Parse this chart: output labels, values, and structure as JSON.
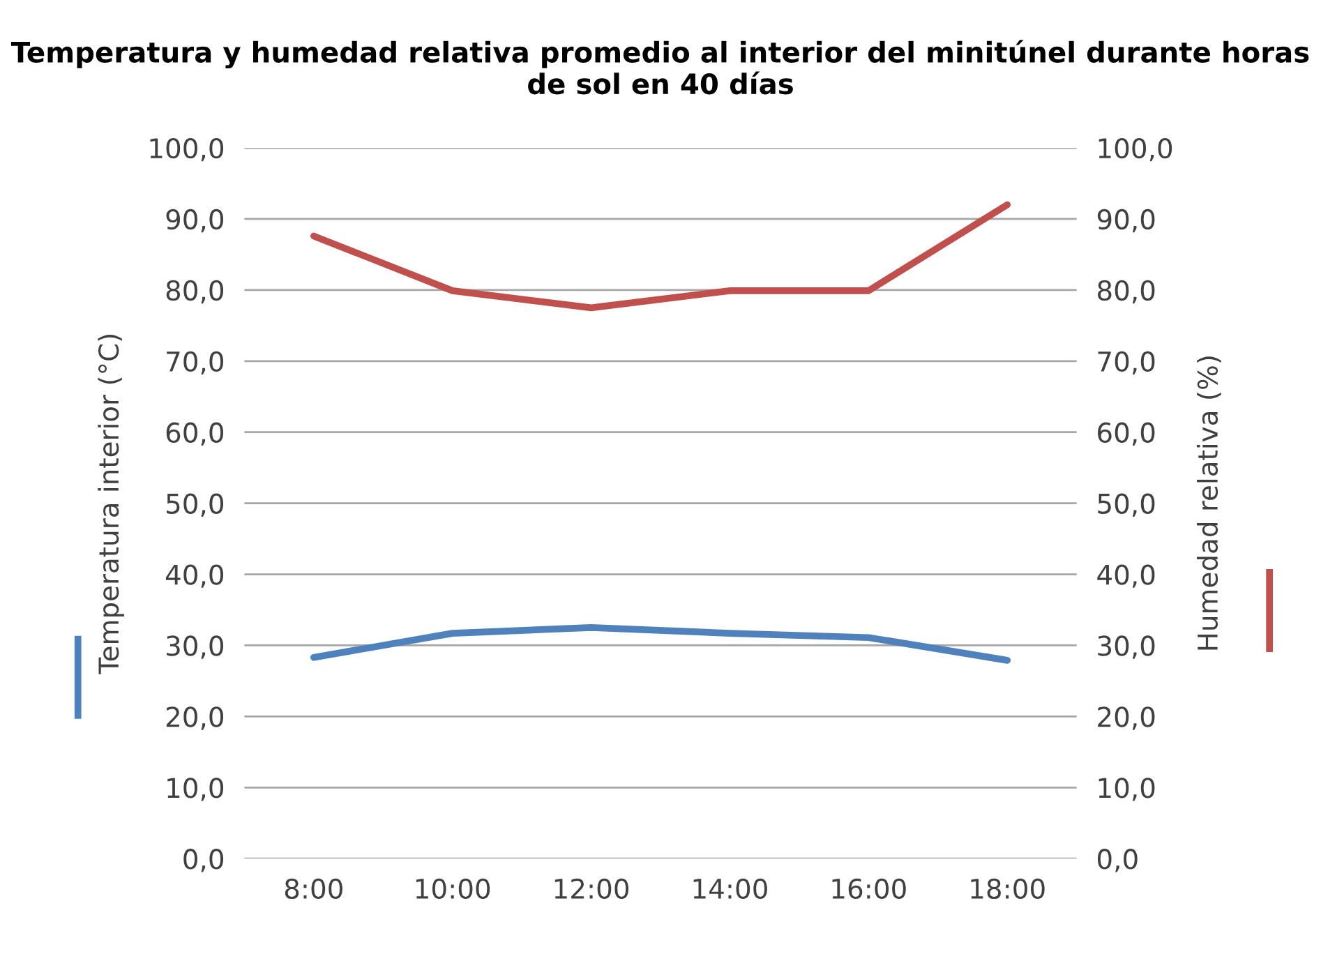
{
  "chart_data": {
    "type": "line",
    "title": "Temperatura y humedad relativa promedio al interior del minitúnel durante horas de sol en 40 días",
    "ylabel": "Temperatura interior (°C)",
    "y2label": "Humedad relativa (%)",
    "categories": [
      "8:00",
      "10:00",
      "12:00",
      "14:00",
      "16:00",
      "18:00"
    ],
    "series": [
      {
        "color": "#4f81bd",
        "values": [
          28.3,
          31.7,
          32.5,
          31.7,
          31.1,
          27.9
        ]
      },
      {
        "color": "#c0504d",
        "axis": "y2",
        "values": [
          87.6,
          79.9,
          77.5,
          79.9,
          79.9,
          92.0
        ]
      }
    ],
    "ylim": [
      0,
      100
    ],
    "yticks": [
      {
        "value": 0,
        "label": "0,0"
      },
      {
        "value": 10,
        "label": "10,0"
      },
      {
        "value": 20,
        "label": "20,0"
      },
      {
        "value": 30,
        "label": "30,0"
      },
      {
        "value": 40,
        "label": "40,0"
      },
      {
        "value": 50,
        "label": "50,0"
      },
      {
        "value": 60,
        "label": "60,0"
      },
      {
        "value": 70,
        "label": "70,0"
      },
      {
        "value": 80,
        "label": "80,0"
      },
      {
        "value": 90,
        "label": "90,0"
      },
      {
        "value": 100,
        "label": "100,0"
      }
    ],
    "y2lim": [
      0,
      100
    ],
    "y2ticks": [
      {
        "value": 0,
        "label": "0,0"
      },
      {
        "value": 10,
        "label": "10,0"
      },
      {
        "value": 20,
        "label": "20,0"
      },
      {
        "value": 30,
        "label": "30,0"
      },
      {
        "value": 40,
        "label": "40,0"
      },
      {
        "value": 50,
        "label": "50,0"
      },
      {
        "value": 60,
        "label": "60,0"
      },
      {
        "value": 70,
        "label": "70,0"
      },
      {
        "value": 80,
        "label": "80,0"
      },
      {
        "value": 90,
        "label": "90,0"
      },
      {
        "value": 100,
        "label": "100,0"
      }
    ],
    "grid": "y"
  }
}
